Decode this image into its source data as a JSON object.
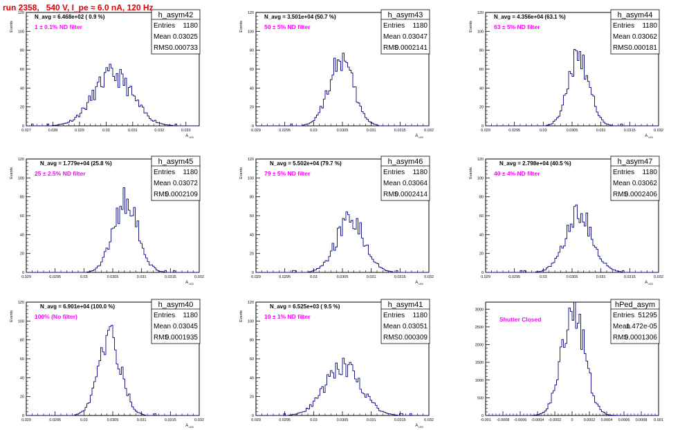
{
  "run_title": "run 2358,   540 V, I_pe ≈ 6.0 nA, 120 Hz",
  "stat_labels": [
    "Entries",
    "Mean",
    "RMS"
  ],
  "colors": {
    "hist": "#000080",
    "annotation": "#ff00ff",
    "title": "#e00000"
  },
  "chart_data": [
    {
      "type": "histogram",
      "name": "h_asym42",
      "navg": "N_avg = 6.468e+02 ( 0.9 %)",
      "filter": "1 ± 0.1% ND filter",
      "entries": "1180",
      "mean": "0.03025",
      "rms": "0.000733",
      "ylabel": "Events",
      "xlabel": "A",
      "xlim": [
        0.027,
        0.0335
      ],
      "ylim": [
        0,
        120
      ],
      "xticks": [
        "0.027",
        "0.028",
        "0.029",
        "0.03",
        "0.031",
        "0.032",
        "0.033"
      ],
      "xtick_values": [
        0.027,
        0.028,
        0.029,
        0.03,
        0.031,
        0.032,
        0.033
      ],
      "yticks": [
        "0",
        "20",
        "40",
        "60",
        "80",
        "100",
        "120"
      ],
      "peak": 54
    },
    {
      "type": "histogram",
      "name": "h_asym43",
      "navg": "N_avg = 3.501e+04 (50.7 %)",
      "filter": "50 ± 5% ND filter",
      "entries": "1180",
      "mean": "0.03047",
      "rms": "0.0002141",
      "ylabel": "Events",
      "xlabel": "A",
      "xlim": [
        0.029,
        0.032
      ],
      "ylim": [
        0,
        120
      ],
      "xticks": [
        "0.029",
        "0.0295",
        "0.03",
        "0.0305",
        "0.031",
        "0.0315",
        "0.032"
      ],
      "xtick_values": [
        0.029,
        0.0295,
        0.03,
        0.0305,
        0.031,
        0.0315,
        0.032
      ],
      "yticks": [
        "0",
        "20",
        "40",
        "60",
        "80",
        "100",
        "120"
      ],
      "peak": 70
    },
    {
      "type": "histogram",
      "name": "h_asym44",
      "navg": "N_avg = 4.356e+04 (63.1 %)",
      "filter": "63 ± 5% ND filter",
      "entries": "1180",
      "mean": "0.03062",
      "rms": "0.000181",
      "ylabel": "Events",
      "xlabel": "A",
      "xlim": [
        0.029,
        0.032
      ],
      "ylim": [
        0,
        120
      ],
      "xticks": [
        "0.029",
        "0.0295",
        "0.03",
        "0.0305",
        "0.031",
        "0.0315",
        "0.032"
      ],
      "xtick_values": [
        0.029,
        0.0295,
        0.03,
        0.0305,
        0.031,
        0.0315,
        0.032
      ],
      "yticks": [
        "0",
        "20",
        "40",
        "60",
        "80",
        "100",
        "120"
      ],
      "peak": 74
    },
    {
      "type": "histogram",
      "name": "h_asym45",
      "navg": "N_avg = 1.779e+04 (25.8 %)",
      "filter": "25 ± 2.5% ND filter",
      "entries": "1180",
      "mean": "0.03072",
      "rms": "0.0002109",
      "ylabel": "Events",
      "xlabel": "A",
      "xlim": [
        0.029,
        0.032
      ],
      "ylim": [
        0,
        120
      ],
      "xticks": [
        "0.029",
        "0.0295",
        "0.03",
        "0.0305",
        "0.031",
        "0.0315",
        "0.032"
      ],
      "xtick_values": [
        0.029,
        0.0295,
        0.03,
        0.0305,
        0.031,
        0.0315,
        0.032
      ],
      "yticks": [
        "0",
        "20",
        "40",
        "60",
        "80",
        "100",
        "120"
      ],
      "peak": 76
    },
    {
      "type": "histogram",
      "name": "h_asym46",
      "navg": "N_avg = 5.502e+04 (79.7 %)",
      "filter": "79 ± 5% ND filter",
      "entries": "1180",
      "mean": "0.03064",
      "rms": "0.0002414",
      "ylabel": "Events",
      "xlabel": "A",
      "xlim": [
        0.029,
        0.032
      ],
      "ylim": [
        0,
        120
      ],
      "xticks": [
        "0.029",
        "0.0295",
        "0.03",
        "0.0305",
        "0.031",
        "0.0315",
        "0.032"
      ],
      "xtick_values": [
        0.029,
        0.0295,
        0.03,
        0.0305,
        0.031,
        0.0315,
        0.032
      ],
      "yticks": [
        "0",
        "20",
        "40",
        "60",
        "80",
        "100",
        "120"
      ],
      "peak": 57
    },
    {
      "type": "histogram",
      "name": "h_asym47",
      "navg": "N_avg = 2.798e+04 (40.5 %)",
      "filter": "40 ± 4% ND filter",
      "entries": "1180",
      "mean": "0.03062",
      "rms": "0.0002406",
      "ylabel": "Events",
      "xlabel": "A",
      "xlim": [
        0.029,
        0.032
      ],
      "ylim": [
        0,
        120
      ],
      "xticks": [
        "0.029",
        "0.0295",
        "0.03",
        "0.0305",
        "0.031",
        "0.0315",
        "0.032"
      ],
      "xtick_values": [
        0.029,
        0.0295,
        0.03,
        0.0305,
        0.031,
        0.0315,
        0.032
      ],
      "yticks": [
        "0",
        "20",
        "40",
        "60",
        "80",
        "100",
        "120"
      ],
      "peak": 61
    },
    {
      "type": "histogram",
      "name": "h_asym40",
      "navg": "N_avg = 6.901e+04 (100.0 %)",
      "filter": "100% (No filter)",
      "entries": "1180",
      "mean": "0.03045",
      "rms": "0.0001935",
      "ylabel": "Events",
      "xlabel": "A",
      "xlim": [
        0.029,
        0.032
      ],
      "ylim": [
        0,
        120
      ],
      "xticks": [
        "0.029",
        "0.0295",
        "0.03",
        "0.0305",
        "0.031",
        "0.0315",
        "0.032"
      ],
      "xtick_values": [
        0.029,
        0.0295,
        0.03,
        0.0305,
        0.031,
        0.0315,
        0.032
      ],
      "yticks": [
        "0",
        "20",
        "40",
        "60",
        "80",
        "100",
        "120"
      ],
      "peak": 86
    },
    {
      "type": "histogram",
      "name": "h_asym41",
      "navg": "N_avg = 6.525e+03 ( 9.5 %)",
      "filter": "10 ± 1% ND filter",
      "entries": "1180",
      "mean": "0.03051",
      "rms": "0.000309",
      "ylabel": "Events",
      "xlabel": "A",
      "xlim": [
        0.029,
        0.032
      ],
      "ylim": [
        0,
        120
      ],
      "xticks": [
        "0.029",
        "0.0295",
        "0.03",
        "0.0305",
        "0.031",
        "0.0315",
        "0.032"
      ],
      "xtick_values": [
        0.029,
        0.0295,
        0.03,
        0.0305,
        0.031,
        0.0315,
        0.032
      ],
      "yticks": [
        "0",
        "20",
        "40",
        "60",
        "80",
        "100",
        "120"
      ],
      "peak": 52
    },
    {
      "type": "histogram",
      "name": "hPed_asym",
      "navg": "",
      "filter": "Shutter Closed",
      "entries": "51295",
      "mean": "1.472e-05",
      "rms": "0.0001306",
      "ylabel": "",
      "xlabel": "",
      "xlim": [
        -0.001,
        0.001
      ],
      "ylim": [
        0,
        3200
      ],
      "xticks": [
        "-0.001",
        "-0.0008",
        "-0.0006",
        "-0.0004",
        "-0.0002",
        "0",
        "0.0002",
        "0.0004",
        "0.0006",
        "0.0008",
        "0.001"
      ],
      "xtick_values": [
        -0.001,
        -0.0008,
        -0.0006,
        -0.0004,
        -0.0002,
        0,
        0.0002,
        0.0004,
        0.0006,
        0.0008,
        0.001
      ],
      "yticks": [
        "0",
        "500",
        "1000",
        "1500",
        "2000",
        "2500",
        "3000"
      ],
      "ytick_values": [
        0,
        500,
        1000,
        1500,
        2000,
        2500,
        3000
      ],
      "peak": 3050
    }
  ]
}
